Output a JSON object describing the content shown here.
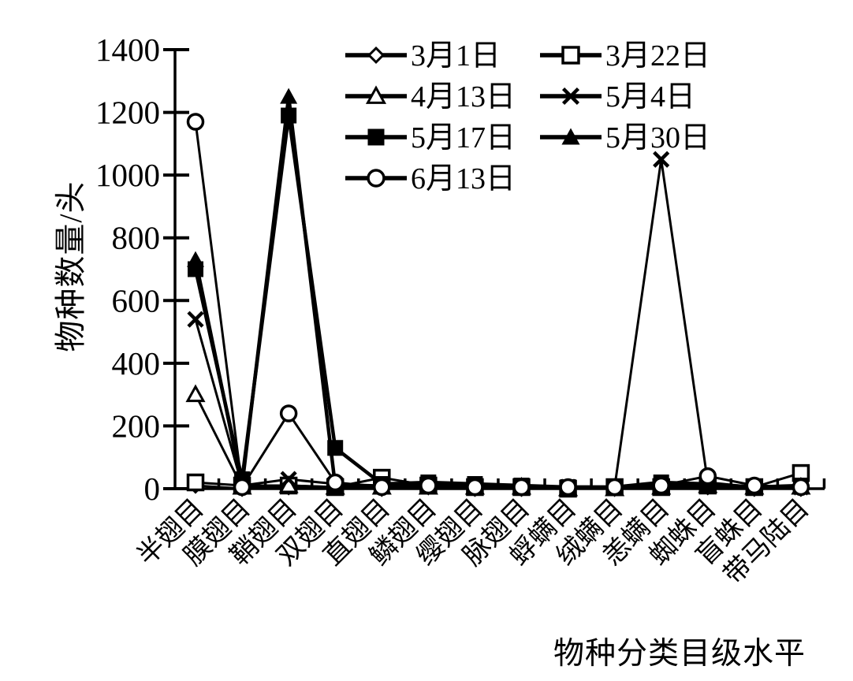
{
  "chart_data": {
    "type": "line",
    "title": "",
    "xlabel": "物种分类目级水平",
    "ylabel": "物种数量/头",
    "ylim": [
      0,
      1400
    ],
    "yticks": [
      0,
      200,
      400,
      600,
      800,
      1000,
      1200,
      1400
    ],
    "grid": false,
    "legend_position": "top-inside-two-columns",
    "categories": [
      "半翅目",
      "膜翅目",
      "鞘翅目",
      "双翅目",
      "直翅目",
      "鳞翅目",
      "缨翅目",
      "脉翅目",
      "蜉螨目",
      "绒螨目",
      "恙螨目",
      "蜘蛛目",
      "盲蛛目",
      "带马陆目"
    ],
    "series": [
      {
        "name": "3月1日",
        "marker": "diamond-open",
        "values": [
          10,
          0,
          5,
          5,
          0,
          5,
          0,
          0,
          0,
          0,
          5,
          5,
          0,
          0
        ]
      },
      {
        "name": "3月22日",
        "marker": "square-open",
        "values": [
          20,
          10,
          10,
          5,
          35,
          10,
          5,
          5,
          0,
          5,
          5,
          10,
          5,
          50
        ]
      },
      {
        "name": "4月13日",
        "marker": "triangle-open",
        "values": [
          300,
          5,
          10,
          5,
          5,
          5,
          5,
          5,
          0,
          0,
          5,
          10,
          5,
          5
        ]
      },
      {
        "name": "5月4日",
        "marker": "x-cross",
        "values": [
          540,
          10,
          30,
          15,
          10,
          15,
          10,
          5,
          5,
          5,
          1050,
          20,
          5,
          5
        ]
      },
      {
        "name": "5月17日",
        "marker": "square-filled",
        "values": [
          700,
          30,
          1190,
          130,
          15,
          20,
          15,
          10,
          5,
          5,
          20,
          15,
          5,
          10
        ]
      },
      {
        "name": "5月30日",
        "marker": "triangle-filled",
        "values": [
          730,
          10,
          1250,
          10,
          5,
          5,
          5,
          5,
          5,
          5,
          10,
          5,
          5,
          5
        ]
      },
      {
        "name": "6月13日",
        "marker": "circle-open",
        "values": [
          1170,
          5,
          240,
          20,
          5,
          10,
          5,
          5,
          5,
          5,
          10,
          40,
          10,
          5
        ]
      }
    ],
    "legend_columns": [
      [
        "3月1日",
        "4月13日",
        "5月17日",
        "6月13日"
      ],
      [
        "3月22日",
        "5月4日",
        "5月30日"
      ]
    ],
    "colors": {
      "line": "#000000",
      "background": "#ffffff",
      "marker_fill_open": "#ffffff"
    }
  }
}
